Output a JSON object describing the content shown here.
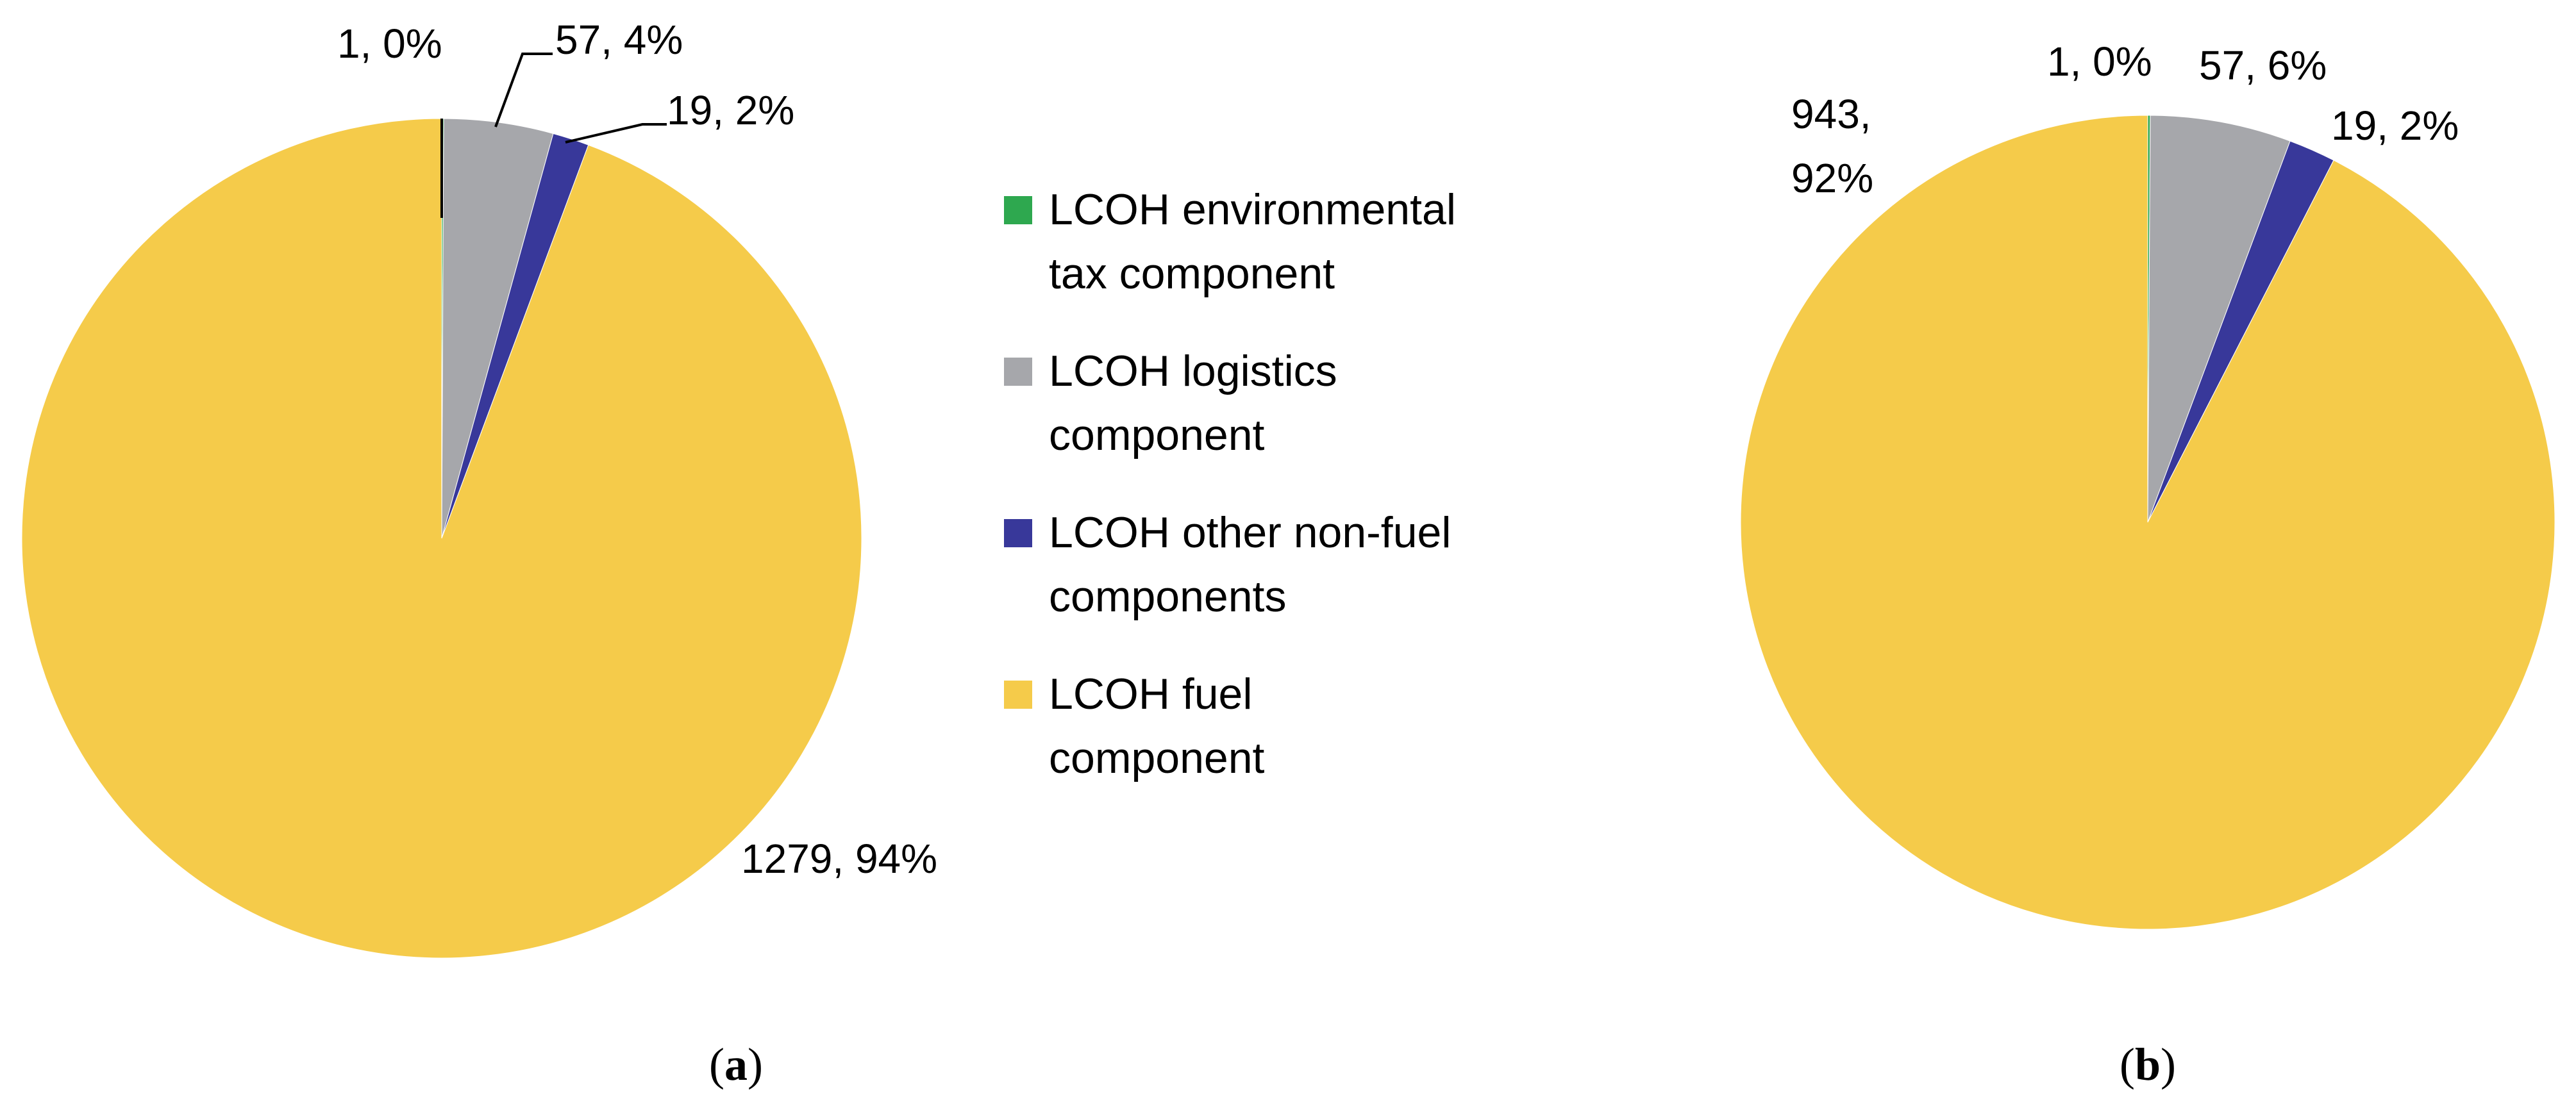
{
  "colors": {
    "environmental": "#2ea84f",
    "logistics": "#a6a7ab",
    "other_non_fuel": "#38389a",
    "fuel": "#f5cb4a"
  },
  "legend": {
    "items": [
      {
        "key": "environmental",
        "line1": "LCOH environmental",
        "line2": "tax component"
      },
      {
        "key": "logistics",
        "line1": "LCOH logistics",
        "line2": "component"
      },
      {
        "key": "other_non_fuel",
        "line1": "LCOH other non-fuel",
        "line2": "components"
      },
      {
        "key": "fuel",
        "line1": "LCOH fuel",
        "line2": "component"
      }
    ]
  },
  "chart_data": [
    {
      "type": "pie",
      "panel": "a",
      "panel_label": {
        "open": "(",
        "letter": "a",
        "close": ")"
      },
      "start_angle_deg": 0,
      "direction": "clockwise",
      "slices": [
        {
          "key": "environmental",
          "label": "LCOH environmental tax component",
          "value": 1,
          "percent": 0,
          "data_label": "1, 0%"
        },
        {
          "key": "logistics",
          "label": "LCOH logistics component",
          "value": 57,
          "percent": 4,
          "data_label": "57, 4%"
        },
        {
          "key": "other_non_fuel",
          "label": "LCOH other non-fuel components",
          "value": 19,
          "percent": 2,
          "data_label": "19, 2%"
        },
        {
          "key": "fuel",
          "label": "LCOH fuel component",
          "value": 1279,
          "percent": 94,
          "data_label": "1279, 94%"
        }
      ]
    },
    {
      "type": "pie",
      "panel": "b",
      "panel_label": {
        "open": "(",
        "letter": "b",
        "close": ")"
      },
      "start_angle_deg": 0,
      "direction": "clockwise",
      "slices": [
        {
          "key": "environmental",
          "label": "LCOH environmental tax component",
          "value": 1,
          "percent": 0,
          "data_label": "1, 0%"
        },
        {
          "key": "logistics",
          "label": "LCOH logistics component",
          "value": 57,
          "percent": 6,
          "data_label": "57, 6%"
        },
        {
          "key": "other_non_fuel",
          "label": "LCOH other non-fuel components",
          "value": 19,
          "percent": 2,
          "data_label": "19, 2%"
        },
        {
          "key": "fuel",
          "label": "LCOH fuel component",
          "value": 943,
          "percent": 92,
          "data_label": "943, 92%",
          "data_label_lines": [
            "943,",
            "92%"
          ]
        }
      ]
    }
  ]
}
